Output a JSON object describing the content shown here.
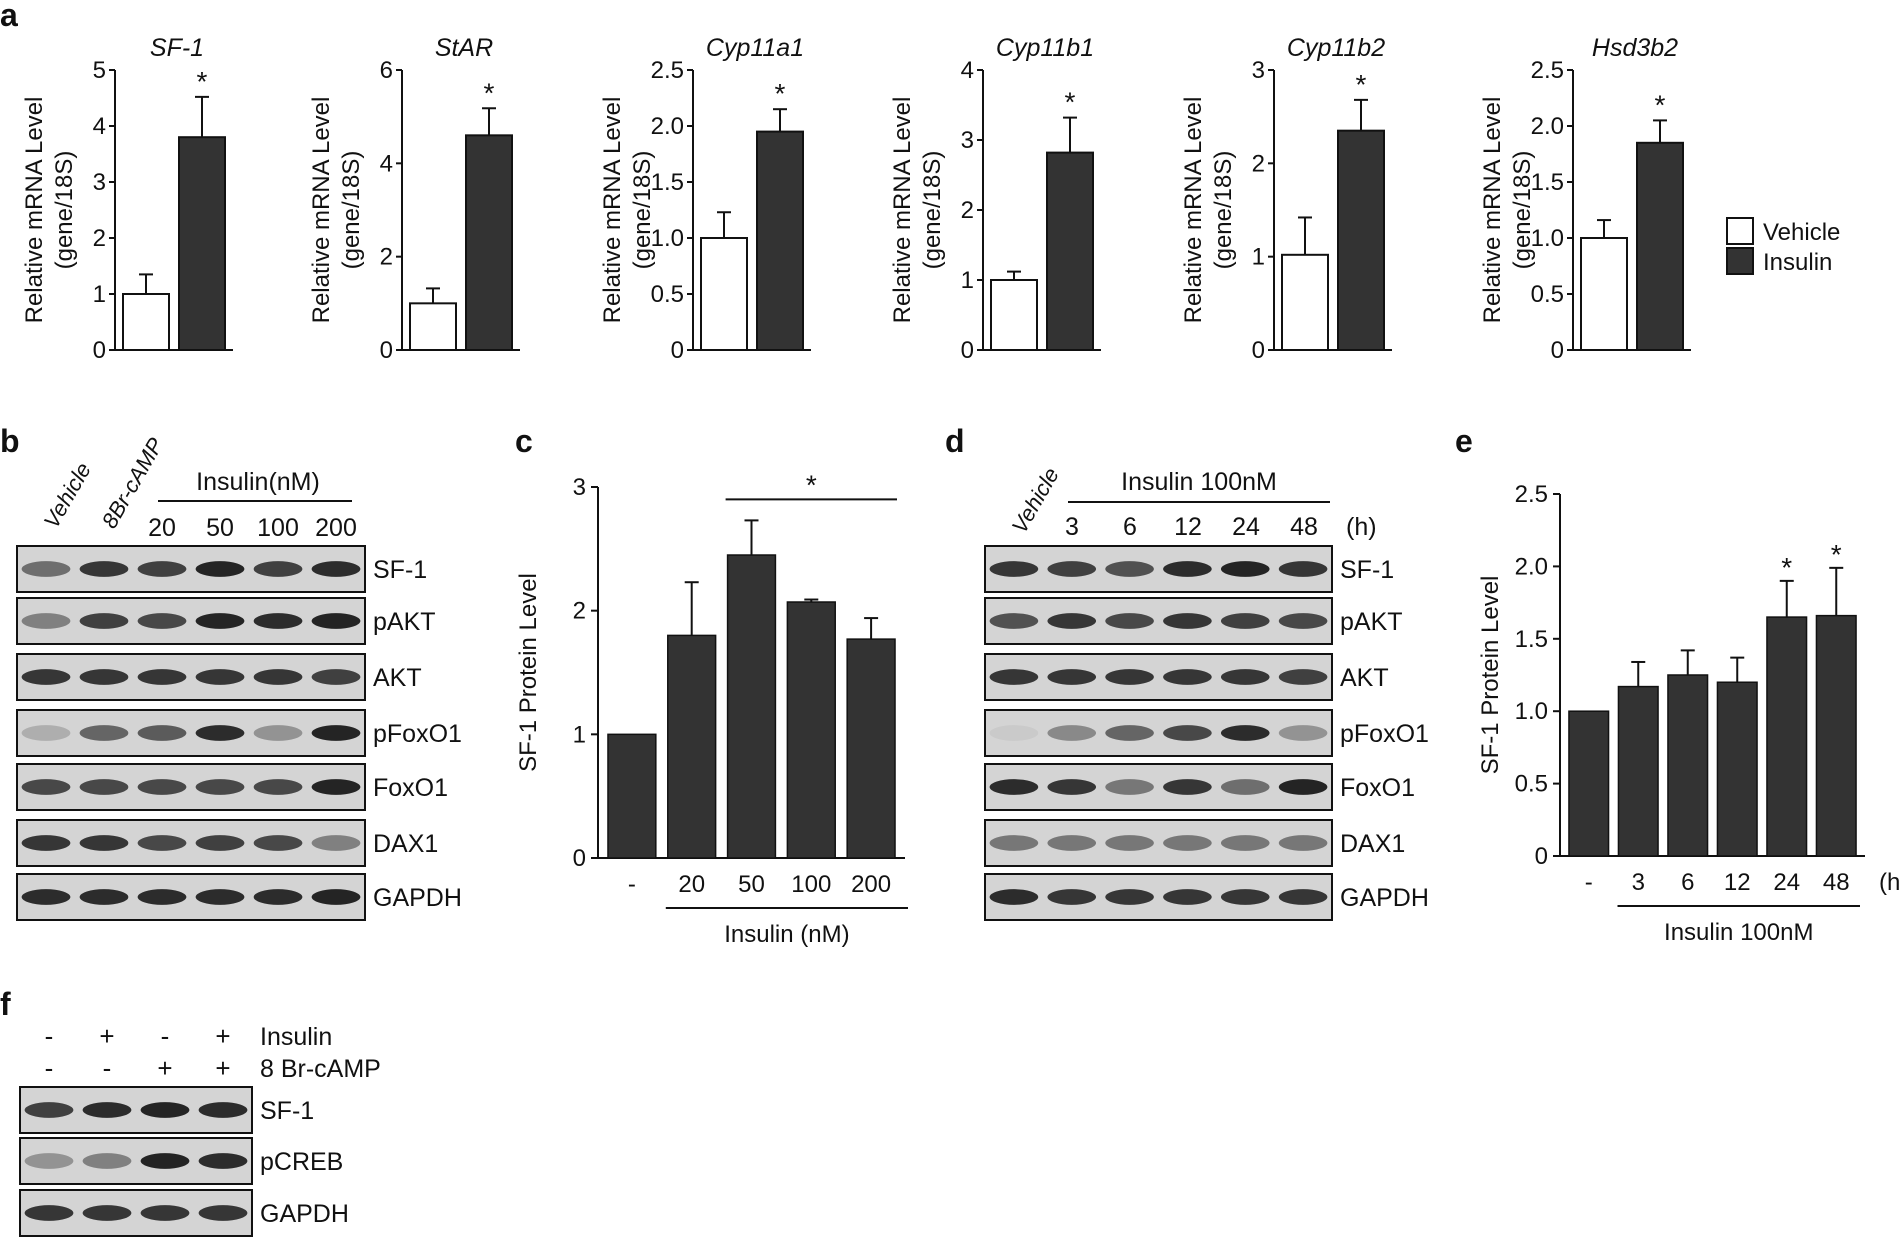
{
  "panel_labels": {
    "a": "a",
    "b": "b",
    "c": "c",
    "d": "d",
    "e": "e",
    "f": "f"
  },
  "chart_data": [
    {
      "panel": "a",
      "type": "bar",
      "title": "SF-1",
      "ylabel": "Relative mRNA Level",
      "ylabel2": "(gene/18S)",
      "ylim": [
        0,
        5
      ],
      "yticks": [
        "0",
        "1",
        "2",
        "3",
        "4",
        "5"
      ],
      "yticks_v": [
        0,
        1,
        2,
        3,
        4,
        5
      ],
      "categories": [
        "Vehicle",
        "Insulin"
      ],
      "values": [
        1.0,
        3.8
      ],
      "errors": [
        0.35,
        0.72
      ],
      "sig": [
        false,
        true
      ],
      "sig_mark": "*"
    },
    {
      "panel": "a",
      "type": "bar",
      "title": "StAR",
      "ylabel": "Relative mRNA Level",
      "ylabel2": "(gene/18S)",
      "ylim": [
        0,
        6
      ],
      "yticks": [
        "0",
        "2",
        "4",
        "6"
      ],
      "yticks_v": [
        0,
        2,
        4,
        6
      ],
      "categories": [
        "Vehicle",
        "Insulin"
      ],
      "values": [
        1.0,
        4.6
      ],
      "errors": [
        0.32,
        0.58
      ],
      "sig": [
        false,
        true
      ],
      "sig_mark": "*"
    },
    {
      "panel": "a",
      "type": "bar",
      "title": "Cyp11a1",
      "ylabel": "Relative mRNA Level",
      "ylabel2": "(gene/18S)",
      "ylim": [
        0,
        2.5
      ],
      "yticks": [
        "0",
        "0.5",
        "1.0",
        "1.5",
        "2.0",
        "2.5"
      ],
      "yticks_v": [
        0,
        0.5,
        1,
        1.5,
        2,
        2.5
      ],
      "categories": [
        "Vehicle",
        "Insulin"
      ],
      "values": [
        1.0,
        1.95
      ],
      "errors": [
        0.23,
        0.2
      ],
      "sig": [
        false,
        true
      ],
      "sig_mark": "*"
    },
    {
      "panel": "a",
      "type": "bar",
      "title": "Cyp11b1",
      "ylabel": "Relative mRNA Level",
      "ylabel2": "(gene/18S)",
      "ylim": [
        0,
        4
      ],
      "yticks": [
        "0",
        "1",
        "2",
        "3",
        "4"
      ],
      "yticks_v": [
        0,
        1,
        2,
        3,
        4
      ],
      "categories": [
        "Vehicle",
        "Insulin"
      ],
      "values": [
        1.0,
        2.82
      ],
      "errors": [
        0.12,
        0.5
      ],
      "sig": [
        false,
        true
      ],
      "sig_mark": "*"
    },
    {
      "panel": "a",
      "type": "bar",
      "title": "Cyp11b2",
      "ylabel": "Relative mRNA Level",
      "ylabel2": "(gene/18S)",
      "ylim": [
        0,
        3
      ],
      "yticks": [
        "0",
        "1",
        "2",
        "3"
      ],
      "yticks_v": [
        0,
        1,
        2,
        3
      ],
      "categories": [
        "Vehicle",
        "Insulin"
      ],
      "values": [
        1.02,
        2.35
      ],
      "errors": [
        0.4,
        0.33
      ],
      "sig": [
        false,
        true
      ],
      "sig_mark": "*"
    },
    {
      "panel": "a",
      "type": "bar",
      "title": "Hsd3b2",
      "ylabel": "Relative mRNA Level",
      "ylabel2": "(gene/18S)",
      "ylim": [
        0,
        2.5
      ],
      "yticks": [
        "0",
        "0.5",
        "1.0",
        "1.5",
        "2.0",
        "2.5"
      ],
      "yticks_v": [
        0,
        0.5,
        1,
        1.5,
        2,
        2.5
      ],
      "categories": [
        "Vehicle",
        "Insulin"
      ],
      "values": [
        1.0,
        1.85
      ],
      "errors": [
        0.16,
        0.2
      ],
      "sig": [
        false,
        true
      ],
      "sig_mark": "*"
    },
    {
      "panel": "c",
      "type": "bar",
      "ylabel": "SF-1 Protein Level",
      "ylim": [
        0,
        3
      ],
      "yticks": [
        "0",
        "1",
        "2",
        "3"
      ],
      "yticks_v": [
        0,
        1,
        2,
        3
      ],
      "categories": [
        "-",
        "20",
        "50",
        "100",
        "200"
      ],
      "values": [
        1.0,
        1.8,
        2.45,
        2.07,
        1.77
      ],
      "errors": [
        0,
        0.43,
        0.28,
        0.02,
        0.17
      ],
      "sig_bracket": {
        "from": 2,
        "to": 4,
        "mark": "*"
      },
      "xlabel": "Insulin (nM)"
    },
    {
      "panel": "e",
      "type": "bar",
      "ylabel": "SF-1 Protein Level",
      "ylim": [
        0,
        2.5
      ],
      "yticks": [
        "0",
        "0.5",
        "1.0",
        "1.5",
        "2.0",
        "2.5"
      ],
      "yticks_v": [
        0,
        0.5,
        1,
        1.5,
        2,
        2.5
      ],
      "categories": [
        "-",
        "3",
        "6",
        "12",
        "24",
        "48"
      ],
      "values": [
        1.0,
        1.17,
        1.25,
        1.2,
        1.65,
        1.66
      ],
      "errors": [
        0,
        0.17,
        0.17,
        0.17,
        0.25,
        0.33
      ],
      "sig": [
        false,
        false,
        false,
        false,
        true,
        true
      ],
      "sig_mark": "*",
      "unit": "(h)",
      "xlabel": "Insulin 100nM"
    }
  ],
  "legend": {
    "items": [
      {
        "label": "Vehicle",
        "color": "#ffffff"
      },
      {
        "label": "Insulin",
        "color": "#333333"
      }
    ]
  },
  "blot_b": {
    "lanes": [
      "Vehicle",
      "8Br-cAMP",
      "20",
      "50",
      "100",
      "200"
    ],
    "group_label": "Insulin(nM)",
    "rows": [
      "SF-1",
      "pAKT",
      "AKT",
      "pFoxO1",
      "FoxO1",
      "DAX1",
      "GAPDH"
    ]
  },
  "blot_d": {
    "first_lane": "Vehicle",
    "lanes": [
      "3",
      "6",
      "12",
      "24",
      "48"
    ],
    "unit": "(h)",
    "group_label": "Insulin 100nM",
    "rows": [
      "SF-1",
      "pAKT",
      "AKT",
      "pFoxO1",
      "FoxO1",
      "DAX1",
      "GAPDH"
    ]
  },
  "blot_f": {
    "conditions": [
      {
        "label": "Insulin",
        "signs": [
          "-",
          "+",
          "-",
          "+"
        ]
      },
      {
        "label": "8 Br-cAMP",
        "signs": [
          "-",
          "-",
          "+",
          "+"
        ]
      }
    ],
    "rows": [
      "SF-1",
      "pCREB",
      "GAPDH"
    ]
  },
  "colors": {
    "bar_dark": "#333333",
    "bar_light": "#ffffff",
    "axis": "#111111"
  }
}
